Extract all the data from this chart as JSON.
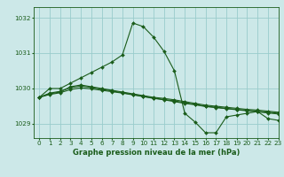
{
  "title": "Graphe pression niveau de la mer (hPa)",
  "background_color": "#cce8e8",
  "grid_color": "#99cccc",
  "line_color": "#1a5c1a",
  "xlim": [
    -0.5,
    23
  ],
  "ylim": [
    1028.6,
    1032.3
  ],
  "yticks": [
    1029,
    1030,
    1031,
    1032
  ],
  "xticks": [
    0,
    1,
    2,
    3,
    4,
    5,
    6,
    7,
    8,
    9,
    10,
    11,
    12,
    13,
    14,
    15,
    16,
    17,
    18,
    19,
    20,
    21,
    22,
    23
  ],
  "line_main": [
    1029.75,
    1030.0,
    1030.0,
    1030.15,
    1030.3,
    1030.45,
    1030.6,
    1030.75,
    1030.95,
    1031.85,
    1031.75,
    1031.45,
    1031.05,
    1030.5,
    1029.3,
    1029.05,
    1028.75,
    1028.75,
    1029.2,
    1029.25,
    1029.3,
    1029.35,
    1029.15,
    1029.1
  ],
  "line_ref1": [
    1029.75,
    1029.85,
    1029.9,
    1030.05,
    1030.1,
    1030.05,
    1030.0,
    1029.95,
    1029.9,
    1029.85,
    1029.8,
    1029.75,
    1029.72,
    1029.68,
    1029.63,
    1029.58,
    1029.53,
    1029.5,
    1029.47,
    1029.44,
    1029.41,
    1029.39,
    1029.36,
    1029.33
  ],
  "line_ref2": [
    1029.75,
    1029.87,
    1029.92,
    1030.02,
    1030.07,
    1030.03,
    1029.98,
    1029.93,
    1029.88,
    1029.83,
    1029.78,
    1029.73,
    1029.69,
    1029.65,
    1029.6,
    1029.55,
    1029.5,
    1029.47,
    1029.44,
    1029.41,
    1029.38,
    1029.36,
    1029.33,
    1029.3
  ],
  "line_ref3": [
    1029.75,
    1029.83,
    1029.88,
    1029.97,
    1030.02,
    1029.99,
    1029.95,
    1029.91,
    1029.87,
    1029.82,
    1029.77,
    1029.72,
    1029.68,
    1029.63,
    1029.58,
    1029.54,
    1029.49,
    1029.46,
    1029.43,
    1029.4,
    1029.37,
    1029.34,
    1029.31,
    1029.28
  ]
}
